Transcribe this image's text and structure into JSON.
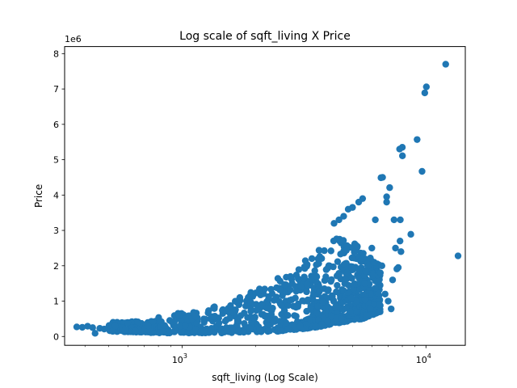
{
  "chart_data": {
    "type": "scatter",
    "title": "Log scale of sqft_living X Price",
    "xlabel": "sqft_living (Log Scale)",
    "ylabel": "Price",
    "x_scale": "log",
    "y_scale": "linear",
    "xlim": [
      330,
      14500
    ],
    "ylim": [
      -250000,
      8200000
    ],
    "offset_text": "1e6",
    "y_ticks": [
      {
        "value": 0,
        "label": "0"
      },
      {
        "value": 1000000,
        "label": "1"
      },
      {
        "value": 2000000,
        "label": "2"
      },
      {
        "value": 3000000,
        "label": "3"
      },
      {
        "value": 4000000,
        "label": "4"
      },
      {
        "value": 5000000,
        "label": "5"
      },
      {
        "value": 6000000,
        "label": "6"
      },
      {
        "value": 7000000,
        "label": "7"
      },
      {
        "value": 8000000,
        "label": "8"
      }
    ],
    "x_ticks": [
      {
        "value": 1000,
        "base": "10",
        "exp": "3"
      },
      {
        "value": 10000,
        "base": "10",
        "exp": "4"
      }
    ],
    "grid": false,
    "legend": "none",
    "marker_color": "#1f77b4",
    "points": [
      [
        370,
        270000
      ],
      [
        390,
        260000
      ],
      [
        410,
        290000
      ],
      [
        430,
        250000
      ],
      [
        440,
        90000
      ],
      [
        460,
        230000
      ],
      [
        480,
        210000
      ],
      [
        13540,
        2280000
      ],
      [
        12050,
        7700000
      ],
      [
        10040,
        7060000
      ],
      [
        9890,
        6890000
      ],
      [
        9200,
        5570000
      ],
      [
        9640,
        4670000
      ],
      [
        8000,
        5350000
      ],
      [
        7800,
        5300000
      ],
      [
        8010,
        5110000
      ],
      [
        6640,
        4500000
      ],
      [
        6540,
        4490000
      ],
      [
        6900,
        3950000
      ],
      [
        7100,
        4210000
      ],
      [
        6900,
        3800000
      ],
      [
        7400,
        3300000
      ],
      [
        7850,
        3300000
      ],
      [
        8670,
        2890000
      ],
      [
        7830,
        2700000
      ],
      [
        7500,
        2500000
      ],
      [
        7900,
        2400000
      ],
      [
        7700,
        1950000
      ],
      [
        7600,
        1910000
      ],
      [
        7300,
        1600000
      ],
      [
        7200,
        780000
      ],
      [
        7000,
        1000000
      ],
      [
        6600,
        2000000
      ],
      [
        6200,
        3300000
      ],
      [
        6000,
        2500000
      ],
      [
        5800,
        2000000
      ],
      [
        5500,
        3900000
      ],
      [
        5300,
        3800000
      ],
      [
        5000,
        3650000
      ],
      [
        4800,
        3600000
      ],
      [
        4600,
        3400000
      ],
      [
        4400,
        3300000
      ],
      [
        4200,
        3200000
      ],
      [
        6500,
        1800000
      ],
      [
        6800,
        1200000
      ],
      [
        5600,
        1500000
      ],
      [
        5900,
        800000
      ],
      [
        4900,
        700000
      ],
      [
        4500,
        500000
      ]
    ],
    "bands": [
      {
        "x_from": 500,
        "x_to": 800,
        "y_lo": [
          150000,
          100000
        ],
        "y_hi": [
          400000,
          450000
        ]
      },
      {
        "x_from": 800,
        "x_to": 1500,
        "y_lo": [
          100000,
          100000
        ],
        "y_hi": [
          550000,
          900000
        ]
      },
      {
        "x_from": 1500,
        "x_to": 2500,
        "y_lo": [
          100000,
          150000
        ],
        "y_hi": [
          900000,
          1700000
        ]
      },
      {
        "x_from": 2500,
        "x_to": 3500,
        "y_lo": [
          150000,
          250000
        ],
        "y_hi": [
          1700000,
          2400000
        ]
      },
      {
        "x_from": 3500,
        "x_to": 4500,
        "y_lo": [
          250000,
          400000
        ],
        "y_hi": [
          2400000,
          2900000
        ]
      },
      {
        "x_from": 4500,
        "x_to": 5500,
        "y_lo": [
          400000,
          500000
        ],
        "y_hi": [
          2900000,
          2500000
        ]
      },
      {
        "x_from": 5500,
        "x_to": 6500,
        "y_lo": [
          500000,
          700000
        ],
        "y_hi": [
          2500000,
          2000000
        ]
      }
    ]
  }
}
